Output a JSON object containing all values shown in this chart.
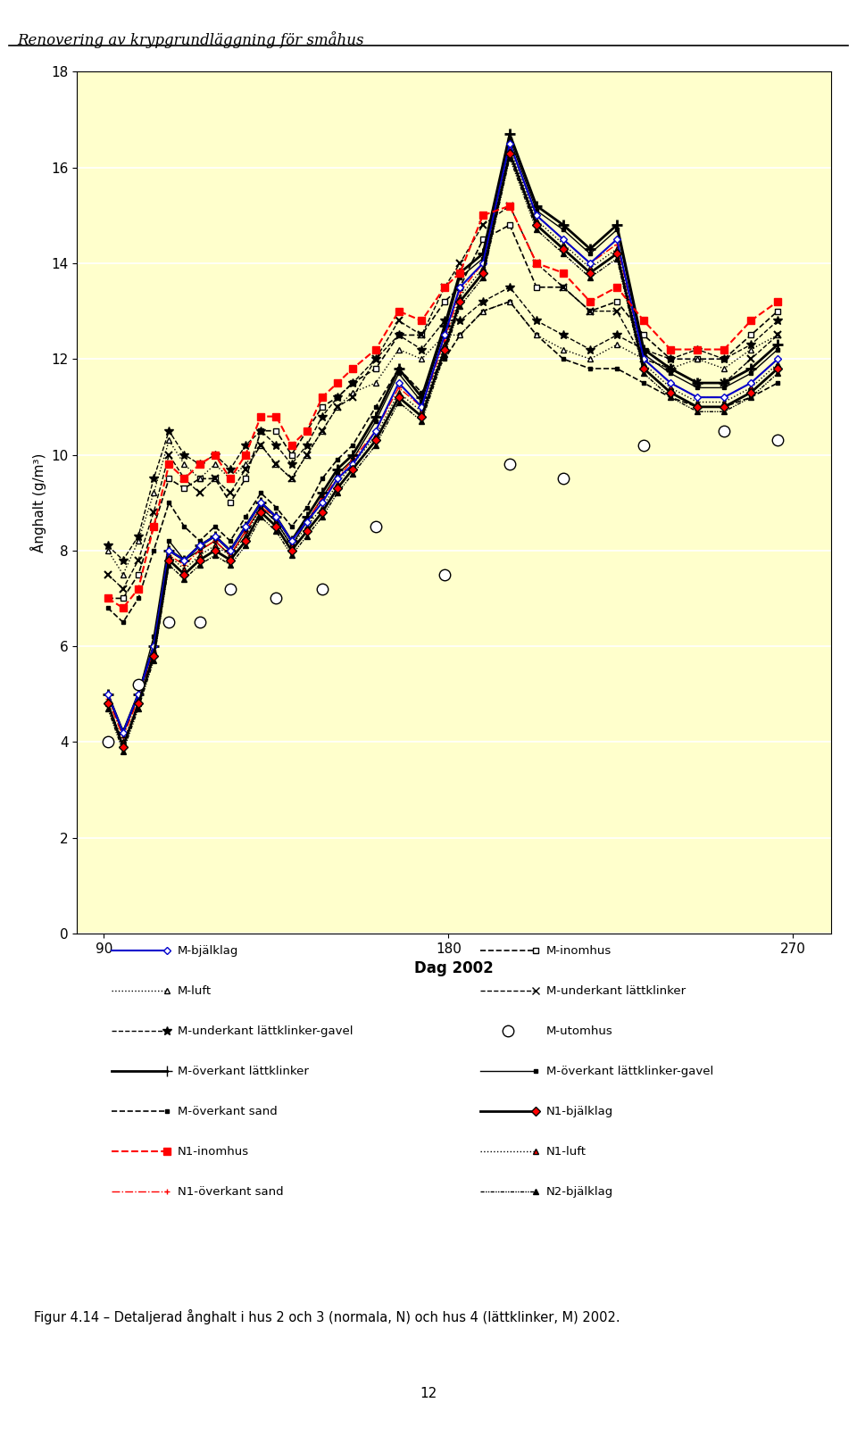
{
  "title": "Renovering av krypgrundläggning för småhus",
  "xlabel": "Dag 2002",
  "ylabel": "Ånghalt (g/m³)",
  "xlim": [
    83,
    280
  ],
  "ylim": [
    0,
    18
  ],
  "xticks": [
    90,
    180,
    270
  ],
  "yticks": [
    0,
    2,
    4,
    6,
    8,
    10,
    12,
    14,
    16,
    18
  ],
  "bg_color": "#FFFFCC",
  "fig_color": "#FFFFFF",
  "caption": "Figur 4.14 – Detaljerad ånghalt i hus 2 och 3 (normala, N) och hus 4 (lättklinker, M) 2002.",
  "page_number": "12",
  "M_bjalkklag_x": [
    91,
    95,
    99,
    103,
    107,
    111,
    115,
    119,
    123,
    127,
    131,
    135,
    139,
    143,
    147,
    151,
    155,
    161,
    167,
    173,
    179,
    183,
    189,
    196,
    203,
    210,
    217,
    224,
    231,
    238,
    245,
    252,
    259,
    266
  ],
  "M_bjalkklag_y": [
    5.0,
    4.2,
    5.0,
    6.0,
    8.0,
    7.8,
    8.1,
    8.3,
    8.0,
    8.5,
    9.0,
    8.7,
    8.2,
    8.6,
    9.0,
    9.5,
    9.8,
    10.5,
    11.5,
    11.0,
    12.5,
    13.5,
    14.0,
    16.5,
    15.0,
    14.5,
    14.0,
    14.5,
    12.0,
    11.5,
    11.2,
    11.2,
    11.5,
    12.0
  ],
  "M_luft_x": [
    91,
    95,
    99,
    103,
    107,
    111,
    115,
    119,
    123,
    127,
    131,
    135,
    139,
    143,
    147,
    151,
    155,
    161,
    167,
    173,
    179,
    183,
    189,
    196,
    203,
    210,
    217,
    224,
    231,
    238,
    245,
    252,
    259,
    266
  ],
  "M_luft_y": [
    8.0,
    7.5,
    8.2,
    9.2,
    10.3,
    9.8,
    9.5,
    9.8,
    9.5,
    9.8,
    10.2,
    9.8,
    9.5,
    10.0,
    10.5,
    11.0,
    11.3,
    11.5,
    12.2,
    12.0,
    12.5,
    12.5,
    13.0,
    13.2,
    12.5,
    12.2,
    12.0,
    12.3,
    12.0,
    11.8,
    12.0,
    11.8,
    12.2,
    12.5
  ],
  "M_underkant_gavel_x": [
    91,
    95,
    99,
    103,
    107,
    111,
    115,
    119,
    123,
    127,
    131,
    135,
    139,
    143,
    147,
    151,
    155,
    161,
    167,
    173,
    179,
    183,
    189,
    196,
    203,
    210,
    217,
    224,
    231,
    238,
    245,
    252,
    259,
    266
  ],
  "M_underkant_gavel_y": [
    8.1,
    7.8,
    8.3,
    9.5,
    10.5,
    10.0,
    9.8,
    10.0,
    9.7,
    10.2,
    10.5,
    10.2,
    9.8,
    10.2,
    10.8,
    11.2,
    11.5,
    12.0,
    12.5,
    12.2,
    12.8,
    12.8,
    13.2,
    13.5,
    12.8,
    12.5,
    12.2,
    12.5,
    12.2,
    12.0,
    12.2,
    12.0,
    12.3,
    12.8
  ],
  "M_overkant_klinker_x": [
    91,
    95,
    99,
    103,
    107,
    111,
    115,
    119,
    123,
    127,
    131,
    135,
    139,
    143,
    147,
    151,
    155,
    161,
    167,
    173,
    179,
    183,
    189,
    196,
    203,
    210,
    217,
    224,
    231,
    238,
    245,
    252,
    259,
    266
  ],
  "M_overkant_klinker_y": [
    5.0,
    4.2,
    5.0,
    6.0,
    8.0,
    7.8,
    8.1,
    8.3,
    8.0,
    8.5,
    9.0,
    8.7,
    8.2,
    8.7,
    9.2,
    9.7,
    10.0,
    10.8,
    11.8,
    11.2,
    12.7,
    13.8,
    14.2,
    16.7,
    15.2,
    14.8,
    14.3,
    14.8,
    12.2,
    11.8,
    11.5,
    11.5,
    11.8,
    12.3
  ],
  "M_overkant_sand_x": [
    91,
    95,
    99,
    103,
    107,
    111,
    115,
    119,
    123,
    127,
    131,
    135,
    139,
    143,
    147,
    151,
    155,
    161,
    167,
    173,
    179,
    183,
    189,
    196,
    203,
    210,
    217,
    224,
    231,
    238,
    245,
    252,
    259,
    266
  ],
  "M_overkant_sand_y": [
    6.8,
    6.5,
    7.0,
    8.0,
    9.0,
    8.5,
    8.2,
    8.5,
    8.2,
    8.7,
    9.2,
    8.9,
    8.5,
    8.9,
    9.5,
    9.9,
    10.2,
    11.0,
    11.8,
    11.3,
    12.0,
    12.5,
    13.0,
    13.2,
    12.5,
    12.0,
    11.8,
    11.8,
    11.5,
    11.2,
    11.0,
    11.0,
    11.2,
    11.5
  ],
  "M_inomhus_x": [
    91,
    95,
    99,
    103,
    107,
    111,
    115,
    119,
    123,
    127,
    131,
    135,
    139,
    143,
    147,
    151,
    155,
    161,
    167,
    173,
    179,
    183,
    189,
    196,
    203,
    210,
    217,
    224,
    231,
    238,
    245,
    252,
    259,
    266
  ],
  "M_inomhus_y": [
    7.0,
    7.0,
    7.5,
    8.5,
    9.5,
    9.3,
    9.5,
    9.5,
    9.0,
    9.5,
    10.5,
    10.5,
    10.0,
    10.5,
    11.0,
    11.2,
    11.5,
    11.8,
    12.5,
    12.5,
    13.2,
    13.5,
    14.5,
    14.8,
    13.5,
    13.5,
    13.0,
    13.2,
    12.5,
    12.0,
    12.0,
    12.0,
    12.5,
    13.0
  ],
  "M_underkant_klinker_x": [
    91,
    95,
    99,
    103,
    107,
    111,
    115,
    119,
    123,
    127,
    131,
    135,
    139,
    143,
    147,
    151,
    155,
    161,
    167,
    173,
    179,
    183,
    189,
    196,
    203,
    210,
    217,
    224,
    231,
    238,
    245,
    252,
    259,
    266
  ],
  "M_underkant_klinker_y": [
    7.5,
    7.2,
    7.8,
    8.8,
    10.0,
    9.5,
    9.2,
    9.5,
    9.2,
    9.7,
    10.2,
    9.8,
    9.5,
    10.0,
    10.5,
    11.0,
    11.2,
    12.0,
    12.8,
    12.5,
    13.5,
    14.0,
    14.8,
    15.2,
    14.0,
    13.5,
    13.0,
    13.0,
    12.0,
    11.8,
    11.5,
    11.5,
    12.0,
    12.5
  ],
  "M_utomhus_x": [
    91,
    99,
    107,
    115,
    123,
    135,
    147,
    161,
    179,
    196,
    210,
    231,
    252,
    266
  ],
  "M_utomhus_y": [
    4.0,
    5.2,
    6.5,
    6.5,
    7.2,
    7.0,
    7.2,
    8.5,
    7.5,
    9.8,
    9.5,
    10.2,
    10.5,
    10.3
  ],
  "M_overkant_klinker_gavel_x": [
    91,
    95,
    99,
    103,
    107,
    111,
    115,
    119,
    123,
    127,
    131,
    135,
    139,
    143,
    147,
    151,
    155,
    161,
    167,
    173,
    179,
    183,
    189,
    196,
    203,
    210,
    217,
    224,
    231,
    238,
    245,
    252,
    259,
    266
  ],
  "M_overkant_klinker_gavel_y": [
    5.0,
    4.2,
    5.0,
    6.2,
    8.2,
    7.8,
    8.0,
    8.2,
    7.9,
    8.4,
    8.9,
    8.6,
    8.1,
    8.6,
    9.1,
    9.6,
    9.9,
    10.7,
    11.7,
    11.1,
    12.6,
    13.7,
    14.1,
    16.6,
    15.1,
    14.7,
    14.2,
    14.7,
    12.1,
    11.7,
    11.4,
    11.4,
    11.7,
    12.2
  ],
  "N1_bjalkklag_x": [
    91,
    95,
    99,
    103,
    107,
    111,
    115,
    119,
    123,
    127,
    131,
    135,
    139,
    143,
    147,
    151,
    155,
    161,
    167,
    173,
    179,
    183,
    189,
    196,
    203,
    210,
    217,
    224,
    231,
    238,
    245,
    252,
    259,
    266
  ],
  "N1_bjalkklag_y": [
    4.8,
    3.9,
    4.8,
    5.8,
    7.8,
    7.5,
    7.8,
    8.0,
    7.8,
    8.2,
    8.8,
    8.5,
    8.0,
    8.4,
    8.8,
    9.3,
    9.7,
    10.3,
    11.2,
    10.8,
    12.2,
    13.2,
    13.8,
    16.3,
    14.8,
    14.3,
    13.8,
    14.2,
    11.8,
    11.3,
    11.0,
    11.0,
    11.3,
    11.8
  ],
  "N1_inomhus_x": [
    91,
    95,
    99,
    103,
    107,
    111,
    115,
    119,
    123,
    127,
    131,
    135,
    139,
    143,
    147,
    151,
    155,
    161,
    167,
    173,
    179,
    183,
    189,
    196,
    203,
    210,
    217,
    224,
    231,
    238,
    245,
    252,
    259,
    266
  ],
  "N1_inomhus_y": [
    7.0,
    6.8,
    7.2,
    8.5,
    9.8,
    9.5,
    9.8,
    10.0,
    9.5,
    10.0,
    10.8,
    10.8,
    10.2,
    10.5,
    11.2,
    11.5,
    11.8,
    12.2,
    13.0,
    12.8,
    13.5,
    13.8,
    15.0,
    15.2,
    14.0,
    13.8,
    13.2,
    13.5,
    12.8,
    12.2,
    12.2,
    12.2,
    12.8,
    13.2
  ],
  "N1_luft_x": [
    91,
    95,
    99,
    103,
    107,
    111,
    115,
    119,
    123,
    127,
    131,
    135,
    139,
    143,
    147,
    151,
    155,
    161,
    167,
    173,
    179,
    183,
    189,
    196,
    203,
    210,
    217,
    224,
    231,
    238,
    245,
    252,
    259,
    266
  ],
  "N1_luft_y": [
    4.8,
    4.0,
    4.8,
    5.9,
    7.9,
    7.6,
    7.9,
    8.1,
    7.9,
    8.3,
    8.9,
    8.6,
    8.1,
    8.5,
    8.9,
    9.4,
    9.8,
    10.4,
    11.3,
    10.9,
    12.3,
    13.3,
    13.9,
    16.4,
    14.9,
    14.4,
    13.9,
    14.3,
    11.9,
    11.4,
    11.1,
    11.1,
    11.4,
    11.9
  ],
  "N1_overkant_sand_x": [
    91,
    95,
    99,
    103,
    107,
    111,
    115,
    119,
    123,
    127,
    131,
    135,
    139,
    143,
    147,
    151,
    155,
    161,
    167,
    173,
    179,
    183,
    189,
    196,
    203,
    210,
    217,
    224,
    231,
    238,
    245,
    252,
    259,
    266
  ],
  "N1_overkant_sand_y": [
    4.9,
    4.1,
    4.9,
    5.9,
    7.9,
    7.7,
    8.0,
    8.2,
    7.9,
    8.4,
    8.9,
    8.7,
    8.2,
    8.6,
    9.1,
    9.5,
    9.9,
    10.5,
    11.4,
    11.0,
    12.4,
    13.4,
    14.0,
    16.5,
    15.0,
    14.5,
    14.0,
    14.4,
    12.0,
    11.5,
    11.2,
    11.2,
    11.5,
    12.0
  ],
  "N2_bjalkklag_x": [
    91,
    95,
    99,
    103,
    107,
    111,
    115,
    119,
    123,
    127,
    131,
    135,
    139,
    143,
    147,
    151,
    155,
    161,
    167,
    173,
    179,
    183,
    189,
    196,
    203,
    210,
    217,
    224,
    231,
    238,
    245,
    252,
    259,
    266
  ],
  "N2_bjalkklag_y": [
    4.7,
    3.8,
    4.7,
    5.7,
    7.7,
    7.4,
    7.7,
    7.9,
    7.7,
    8.1,
    8.7,
    8.4,
    7.9,
    8.3,
    8.7,
    9.2,
    9.6,
    10.2,
    11.1,
    10.7,
    12.1,
    13.1,
    13.7,
    16.2,
    14.7,
    14.2,
    13.7,
    14.1,
    11.7,
    11.2,
    10.9,
    10.9,
    11.2,
    11.7
  ]
}
